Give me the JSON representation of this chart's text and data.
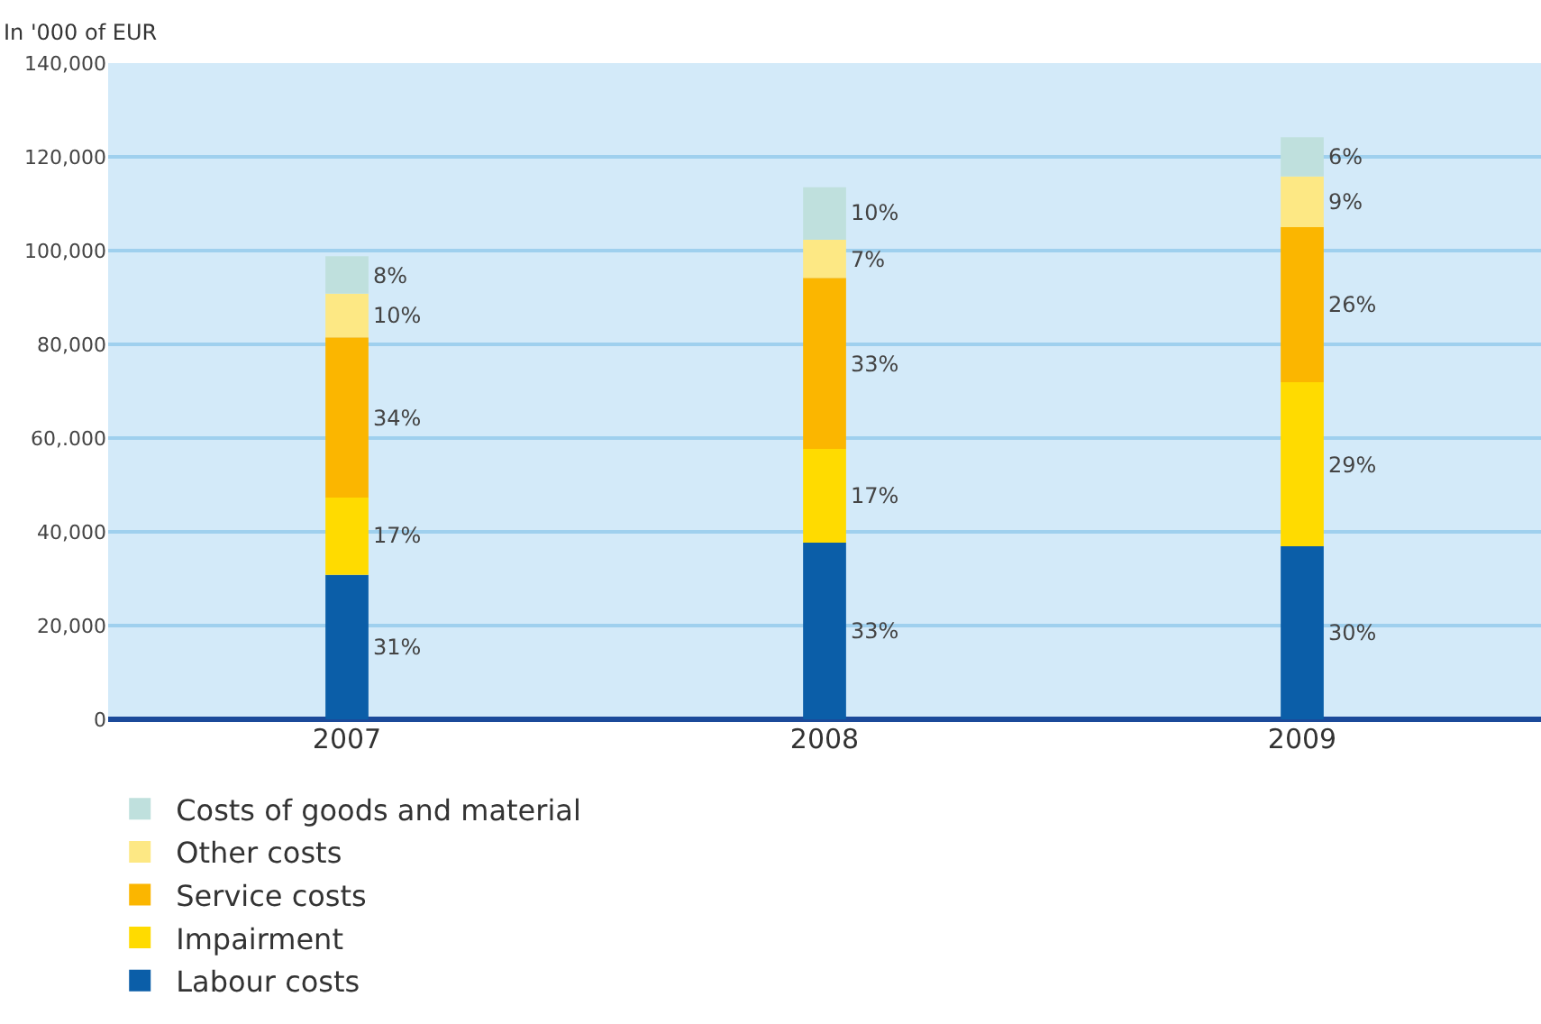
{
  "chart_data": {
    "type": "bar",
    "stacked": true,
    "ylabel": "In '000 of EUR",
    "categories": [
      "2007",
      "2008",
      "2009"
    ],
    "series": [
      {
        "name": "Labour costs",
        "color": "#0b5ea8",
        "values": [
          30800,
          37700,
          36900
        ]
      },
      {
        "name": "Impairment",
        "color": "#ffdb00",
        "values": [
          16500,
          20000,
          35000
        ]
      },
      {
        "name": "Service costs",
        "color": "#fbb600",
        "values": [
          34200,
          36500,
          33100
        ]
      },
      {
        "name": "Other costs",
        "color": "#fde884",
        "values": [
          9300,
          8100,
          10800
        ]
      },
      {
        "name": "Costs of goods and material",
        "color": "#bfe0dd",
        "values": [
          8000,
          11200,
          8400
        ]
      }
    ],
    "annotations": [
      "31%",
      "17%",
      "34%",
      "10%",
      "8%",
      "33%",
      "17%",
      "33%",
      "7%",
      "10%",
      "30%",
      "29%",
      "26%",
      "9%",
      "6%"
    ],
    "ylim": [
      0,
      140000
    ],
    "yticks": [
      0,
      {
        "value": 20000,
        "label": "20,000"
      },
      {
        "value": 40000,
        "label": "40,000"
      },
      {
        "value": 60000,
        "label": "60,.000"
      },
      {
        "value": 80000,
        "label": "80,000"
      },
      {
        "value": 100000,
        "label": "100,000"
      },
      {
        "value": 120000,
        "label": "120,000"
      },
      {
        "value": 140000,
        "label": "140,000"
      }
    ],
    "grid": "y",
    "legend": "bottom left"
  }
}
